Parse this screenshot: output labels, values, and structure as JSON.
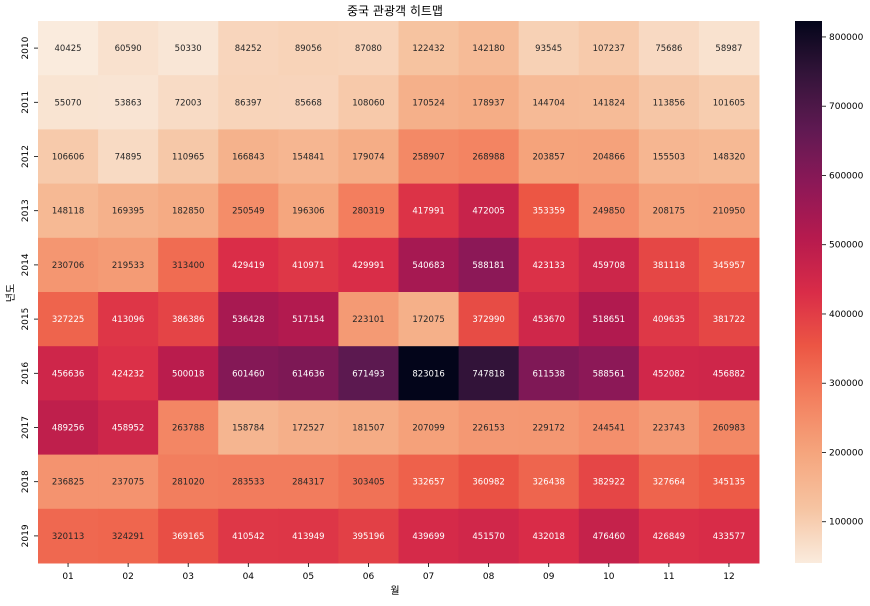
{
  "chart_data": {
    "type": "heatmap",
    "title": "중국 관광객 히트맵",
    "xlabel": "월",
    "ylabel": "년도",
    "x_categories": [
      "01",
      "02",
      "03",
      "04",
      "05",
      "06",
      "07",
      "08",
      "09",
      "10",
      "11",
      "12"
    ],
    "y_categories": [
      "2010",
      "2011",
      "2012",
      "2013",
      "2014",
      "2015",
      "2016",
      "2017",
      "2018",
      "2019"
    ],
    "values": [
      [
        40425,
        60590,
        50330,
        84252,
        89056,
        87080,
        122432,
        142180,
        93545,
        107237,
        75686,
        58987
      ],
      [
        55070,
        53863,
        72003,
        86397,
        85668,
        108060,
        170524,
        178937,
        144704,
        141824,
        113856,
        101605
      ],
      [
        106606,
        74895,
        110965,
        166843,
        154841,
        179074,
        258907,
        268988,
        203857,
        204866,
        155503,
        148320
      ],
      [
        148118,
        169395,
        182850,
        250549,
        196306,
        280319,
        417991,
        472005,
        353359,
        249850,
        208175,
        210950
      ],
      [
        230706,
        219533,
        313400,
        429419,
        410971,
        429991,
        540683,
        588181,
        423133,
        459708,
        381118,
        345957
      ],
      [
        327225,
        413096,
        386386,
        536428,
        517154,
        223101,
        172075,
        372990,
        453670,
        518651,
        409635,
        381722
      ],
      [
        456636,
        424232,
        500018,
        601460,
        614636,
        671493,
        823016,
        747818,
        611538,
        588561,
        452082,
        456882
      ],
      [
        489256,
        458952,
        263788,
        158784,
        172527,
        181507,
        207099,
        226153,
        229172,
        244541,
        223743,
        260983
      ],
      [
        236825,
        237075,
        281020,
        283533,
        284317,
        303405,
        332657,
        360982,
        326438,
        382922,
        327664,
        345135
      ],
      [
        320113,
        324291,
        369165,
        410542,
        413949,
        395196,
        439699,
        451570,
        432018,
        476460,
        426849,
        433577
      ]
    ],
    "color_range": [
      40425,
      823016
    ],
    "colormap": "rocket_r",
    "annot": true,
    "colorbar_ticks": [
      100000,
      200000,
      300000,
      400000,
      500000,
      600000,
      700000,
      800000
    ],
    "colorbar_labels": [
      "100000",
      "200000",
      "300000",
      "400000",
      "500000",
      "600000",
      "700000",
      "800000"
    ]
  }
}
